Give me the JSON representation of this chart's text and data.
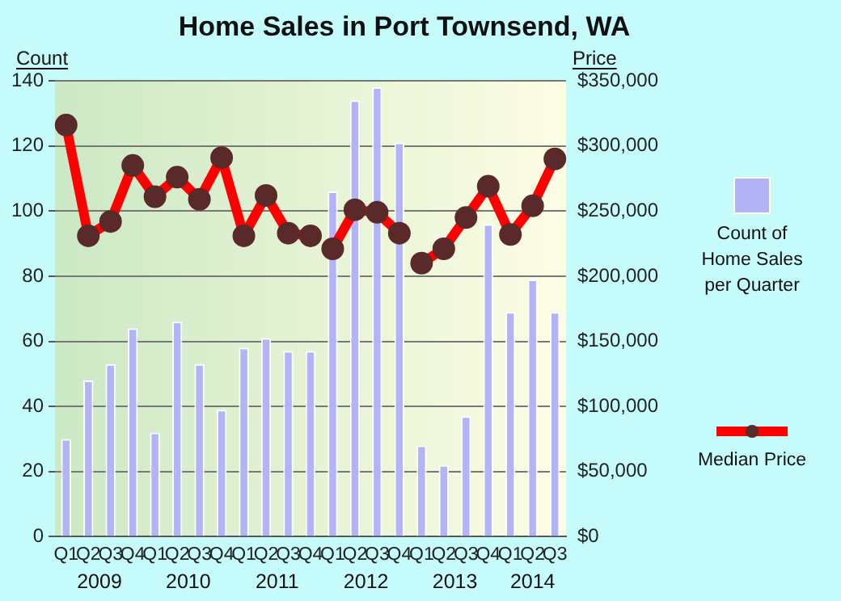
{
  "chart_data": {
    "type": "bar",
    "title": "Home Sales in Port Townsend, WA",
    "ylabel": "Count",
    "y2label": "Price",
    "categories": [
      "Q1",
      "Q2",
      "Q3",
      "Q4",
      "Q1",
      "Q2",
      "Q3",
      "Q4",
      "Q1",
      "Q2",
      "Q3",
      "Q4",
      "Q1",
      "Q2",
      "Q3",
      "Q4",
      "Q1",
      "Q2",
      "Q3",
      "Q4",
      "Q1",
      "Q2",
      "Q3"
    ],
    "annotations": [
      "2009",
      "2010",
      "2011",
      "2012",
      "2013",
      "2014"
    ],
    "series": [
      {
        "name": "Count of Home Sales per Quarter",
        "color": "#b3b3f8",
        "values": [
          30,
          48,
          53,
          64,
          32,
          66,
          53,
          39,
          58,
          61,
          57,
          57,
          106,
          134,
          138,
          121,
          28,
          22,
          37,
          96,
          69,
          79,
          69
        ]
      },
      {
        "name": "Median Price",
        "type": "line",
        "axis": "y2",
        "color": "#ff0000",
        "marker": "circle",
        "values": [
          316000,
          231000,
          242000,
          285000,
          261000,
          276000,
          259000,
          291000,
          231000,
          262000,
          233000,
          231000,
          null,
          null,
          null,
          null,
          null,
          null,
          null,
          null,
          null,
          null,
          null
        ]
      },
      {
        "type": "line",
        "axis": "y2",
        "color": "#ff0000",
        "marker": "circle",
        "values": [
          null,
          null,
          null,
          null,
          null,
          null,
          null,
          null,
          null,
          null,
          null,
          null,
          221000,
          251000,
          249000,
          233000,
          null,
          null,
          null,
          null,
          null,
          null,
          null
        ]
      },
      {
        "type": "line",
        "axis": "y2",
        "color": "#ff0000",
        "marker": "circle",
        "values": [
          null,
          null,
          null,
          null,
          null,
          null,
          null,
          null,
          null,
          null,
          null,
          null,
          null,
          null,
          null,
          null,
          210000,
          221000,
          245000,
          269000,
          232000,
          254000,
          290000
        ]
      }
    ],
    "ylim": [
      0,
      140
    ],
    "yticks": [
      0,
      20,
      40,
      60,
      80,
      100,
      120,
      140
    ],
    "y2lim": [
      0,
      350000
    ],
    "y2ticks": [
      {
        "value": 0,
        "label": "$0"
      },
      {
        "value": 50000,
        "label": "$50,000"
      },
      {
        "value": 100000,
        "label": "$100,000"
      },
      {
        "value": 150000,
        "label": "$150,000"
      },
      {
        "value": 200000,
        "label": "$200,000"
      },
      {
        "value": 250000,
        "label": "$250,000"
      },
      {
        "value": 300000,
        "label": "$300,000"
      },
      {
        "value": 350000,
        "label": "$350,000"
      }
    ],
    "grid": "y",
    "legend": "right"
  }
}
